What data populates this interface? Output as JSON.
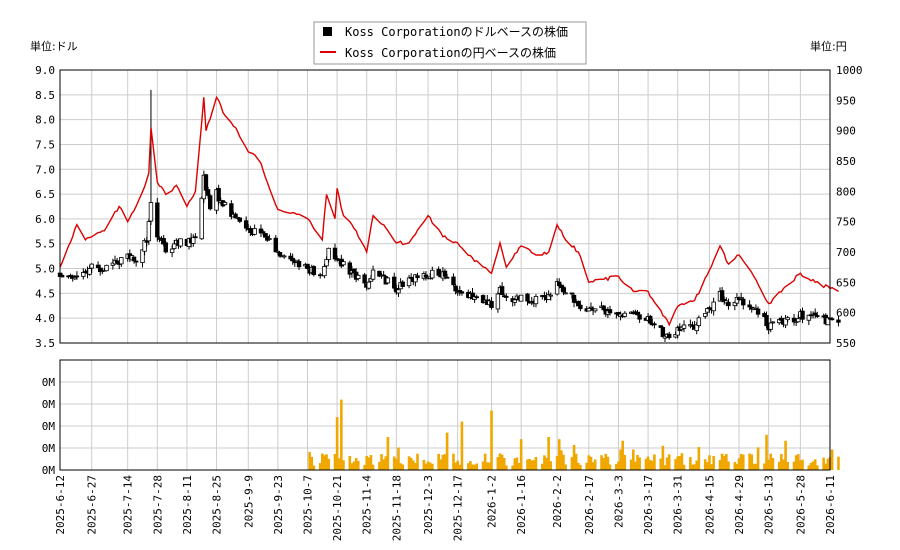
{
  "chart_data": [
    {
      "type": "candlestick+line",
      "legend": [
        {
          "label": "Koss Corporationのドルベースの株価",
          "color": "#000000",
          "marker": "square"
        },
        {
          "label": "Koss Corporationの円ベースの株価",
          "color": "#dd0000",
          "marker": "line"
        }
      ],
      "legend_placement": "top-center",
      "left_unit": "単位:ドル",
      "right_unit": "単位:円",
      "left_ylim": [
        3.5,
        9.0
      ],
      "left_ticks": [
        "3.5",
        "4.0",
        "4.5",
        "5.0",
        "5.5",
        "6.0",
        "6.5",
        "7.0",
        "7.5",
        "8.0",
        "8.5",
        "9.0"
      ],
      "right_ylim": [
        550,
        1000
      ],
      "right_ticks": [
        "550",
        "600",
        "650",
        "700",
        "750",
        "800",
        "850",
        "900",
        "950",
        "1000"
      ],
      "grid": true,
      "x_dates": [
        "2025-6-12",
        "2025-6-27",
        "2025-7-14",
        "2025-7-28",
        "2025-8-11",
        "2025-8-25",
        "2025-9-9",
        "2025-9-23",
        "2025-10-7",
        "2025-10-21",
        "2025-11-4",
        "2025-11-18",
        "2025-12-3",
        "2025-12-17",
        "2026-1-2",
        "2026-1-16",
        "2026-2-2",
        "2026-2-17",
        "2026-3-3",
        "2026-3-17",
        "2026-3-31",
        "2026-4-15",
        "2026-4-29",
        "2026-5-13",
        "2026-5-28",
        "2026-6-11"
      ],
      "series": [
        {
          "name": "Koss Corporationのドルベースの株価",
          "kind": "close",
          "anchors": [
            [
              "2025-6-12",
              4.9
            ],
            [
              "2025-6-18",
              4.75
            ],
            [
              "2025-6-27",
              5.0
            ],
            [
              "2025-7-7",
              5.05
            ],
            [
              "2025-7-14",
              5.3
            ],
            [
              "2025-7-18",
              5.2
            ],
            [
              "2025-7-23",
              5.6
            ],
            [
              "2025-7-25",
              6.3
            ],
            [
              "2025-7-28",
              5.7
            ],
            [
              "2025-8-1",
              5.4
            ],
            [
              "2025-8-6",
              5.5
            ],
            [
              "2025-8-11",
              5.55
            ],
            [
              "2025-8-15",
              5.6
            ],
            [
              "2025-8-19",
              6.8
            ],
            [
              "2025-8-22",
              6.2
            ],
            [
              "2025-8-25",
              6.5
            ],
            [
              "2025-9-1",
              6.1
            ],
            [
              "2025-9-9",
              5.8
            ],
            [
              "2025-9-16",
              5.7
            ],
            [
              "2025-9-23",
              5.3
            ],
            [
              "2025-9-30",
              5.2
            ],
            [
              "2025-10-7",
              5.0
            ],
            [
              "2025-10-14",
              4.9
            ],
            [
              "2025-10-17",
              5.35
            ],
            [
              "2025-10-21",
              5.2
            ],
            [
              "2025-10-24",
              5.1
            ],
            [
              "2025-10-30",
              4.85
            ],
            [
              "2025-11-4",
              4.6
            ],
            [
              "2025-11-7",
              5.0
            ],
            [
              "2025-11-12",
              4.8
            ],
            [
              "2025-11-18",
              4.6
            ],
            [
              "2025-11-24",
              4.75
            ],
            [
              "2025-12-3",
              4.9
            ],
            [
              "2025-12-10",
              4.85
            ],
            [
              "2025-12-17",
              4.55
            ],
            [
              "2025-12-24",
              4.4
            ],
            [
              "2026-1-2",
              4.25
            ],
            [
              "2026-1-6",
              4.55
            ],
            [
              "2026-1-9",
              4.35
            ],
            [
              "2026-1-16",
              4.45
            ],
            [
              "2026-1-23",
              4.35
            ],
            [
              "2026-1-29",
              4.4
            ],
            [
              "2026-2-2",
              4.7
            ],
            [
              "2026-2-6",
              4.5
            ],
            [
              "2026-2-12",
              4.3
            ],
            [
              "2026-2-17",
              4.2
            ],
            [
              "2026-2-24",
              4.15
            ],
            [
              "2026-3-3",
              4.1
            ],
            [
              "2026-3-10",
              4.05
            ],
            [
              "2026-3-17",
              4.0
            ],
            [
              "2026-3-24",
              3.7
            ],
            [
              "2026-3-27",
              3.6
            ],
            [
              "2026-3-31",
              3.75
            ],
            [
              "2026-4-8",
              3.85
            ],
            [
              "2026-4-15",
              4.2
            ],
            [
              "2026-4-20",
              4.45
            ],
            [
              "2026-4-24",
              4.3
            ],
            [
              "2026-4-29",
              4.35
            ],
            [
              "2026-5-6",
              4.2
            ],
            [
              "2026-5-13",
              3.85
            ],
            [
              "2026-5-20",
              3.95
            ],
            [
              "2026-5-28",
              4.05
            ],
            [
              "2026-6-4",
              4.0
            ],
            [
              "2026-6-11",
              3.95
            ],
            [
              "2026-6-15",
              3.9
            ]
          ],
          "spike": [
            "2025-7-25",
            8.6
          ]
        },
        {
          "name": "Koss Corporationの円ベースの株価",
          "kind": "line",
          "points": [
            [
              "2025-6-12",
              675
            ],
            [
              "2025-6-16",
              710
            ],
            [
              "2025-6-20",
              745
            ],
            [
              "2025-6-24",
              720
            ],
            [
              "2025-6-27",
              725
            ],
            [
              "2025-7-3",
              735
            ],
            [
              "2025-7-10",
              775
            ],
            [
              "2025-7-14",
              750
            ],
            [
              "2025-7-20",
              790
            ],
            [
              "2025-7-24",
              830
            ],
            [
              "2025-7-25",
              905
            ],
            [
              "2025-7-28",
              815
            ],
            [
              "2025-8-1",
              795
            ],
            [
              "2025-8-6",
              810
            ],
            [
              "2025-8-11",
              775
            ],
            [
              "2025-8-15",
              800
            ],
            [
              "2025-8-19",
              955
            ],
            [
              "2025-8-20",
              900
            ],
            [
              "2025-8-25",
              955
            ],
            [
              "2025-8-29",
              925
            ],
            [
              "2025-9-3",
              905
            ],
            [
              "2025-9-9",
              865
            ],
            [
              "2025-9-14",
              855
            ],
            [
              "2025-9-18",
              815
            ],
            [
              "2025-9-23",
              770
            ],
            [
              "2025-9-30",
              765
            ],
            [
              "2025-10-7",
              755
            ],
            [
              "2025-10-14",
              720
            ],
            [
              "2025-10-16",
              795
            ],
            [
              "2025-10-20",
              755
            ],
            [
              "2025-10-21",
              805
            ],
            [
              "2025-10-24",
              760
            ],
            [
              "2025-10-30",
              735
            ],
            [
              "2025-11-4",
              700
            ],
            [
              "2025-11-7",
              760
            ],
            [
              "2025-11-12",
              745
            ],
            [
              "2025-11-18",
              715
            ],
            [
              "2025-11-24",
              715
            ],
            [
              "2025-12-3",
              760
            ],
            [
              "2025-12-10",
              725
            ],
            [
              "2025-12-17",
              715
            ],
            [
              "2025-12-24",
              690
            ],
            [
              "2026-1-2",
              665
            ],
            [
              "2026-1-6",
              715
            ],
            [
              "2026-1-9",
              675
            ],
            [
              "2026-1-16",
              710
            ],
            [
              "2026-1-23",
              695
            ],
            [
              "2026-1-29",
              700
            ],
            [
              "2026-2-2",
              745
            ],
            [
              "2026-2-6",
              720
            ],
            [
              "2026-2-12",
              700
            ],
            [
              "2026-2-17",
              650
            ],
            [
              "2026-2-24",
              655
            ],
            [
              "2026-3-3",
              660
            ],
            [
              "2026-3-10",
              635
            ],
            [
              "2026-3-17",
              635
            ],
            [
              "2026-3-24",
              595
            ],
            [
              "2026-3-27",
              580
            ],
            [
              "2026-3-31",
              610
            ],
            [
              "2026-4-8",
              620
            ],
            [
              "2026-4-15",
              670
            ],
            [
              "2026-4-20",
              710
            ],
            [
              "2026-4-24",
              680
            ],
            [
              "2026-4-29",
              695
            ],
            [
              "2026-5-6",
              660
            ],
            [
              "2026-5-13",
              615
            ],
            [
              "2026-5-20",
              640
            ],
            [
              "2026-5-28",
              665
            ],
            [
              "2026-6-4",
              650
            ],
            [
              "2026-6-11",
              640
            ],
            [
              "2026-6-15",
              635
            ]
          ]
        }
      ]
    },
    {
      "type": "bar",
      "series_name": "出来高",
      "ylim": [
        0,
        5
      ],
      "y_ticks": [
        "0M",
        "0M",
        "0M",
        "0M",
        "0M"
      ],
      "grid": true,
      "volume_start": "2025-10-8",
      "volume_end": "2026-6-15",
      "volume_peaks": [
        [
          "2025-10-18",
          5.0
        ],
        [
          "2025-10-23",
          3.2
        ],
        [
          "2025-10-21",
          2.4
        ],
        [
          "2025-11-14",
          1.5
        ],
        [
          "2025-12-12",
          1.7
        ],
        [
          "2025-12-19",
          2.2
        ],
        [
          "2026-1-2",
          2.7
        ],
        [
          "2026-1-16",
          1.4
        ],
        [
          "2026-1-29",
          1.5
        ],
        [
          "2026-2-3",
          1.4
        ],
        [
          "2026-3-24",
          1.1
        ],
        [
          "2026-4-18",
          2.0
        ],
        [
          "2026-5-12",
          1.6
        ],
        [
          "2026-6-13",
          0.8
        ]
      ]
    }
  ]
}
